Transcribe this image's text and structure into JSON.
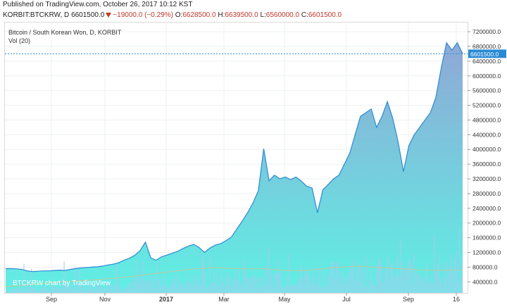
{
  "header": {
    "published": "Published on TradingView.com, October 26, 2017 10:12 KST",
    "symbol": "KORBIT:BTCKRW, D",
    "last": "6601500.0",
    "change": "−19000.0 (−0.29%)",
    "open_label": "O:",
    "open": "6628500.0",
    "high_label": "H:",
    "high": "6639500.0",
    "low_label": "L:",
    "low": "6560000.0",
    "close_label": "C:",
    "close": "6601500.0"
  },
  "legend": {
    "title": "Bitcoin / South Korean Won, D, KORBIT",
    "volume": "Vol (20)"
  },
  "watermark": "BTCKRW chart by TradingView",
  "colors": {
    "line": "#2a8ad4",
    "area_top": "#8fa8d6",
    "area_bottom": "#5ff0e4",
    "volume": "#a9c9f0",
    "volume_ma": "#c7c79a",
    "price_tag": "#2a8ad4",
    "grid": "#eef0f2",
    "negative": "#c0392b"
  },
  "chart_data": {
    "type": "area",
    "x_labels": [
      "Sep",
      "Nov",
      "2017",
      "Mar",
      "May",
      "Jul",
      "Sep",
      "16"
    ],
    "y_ticks": [
      "7200000.0",
      "6800000.0",
      "6400000.0",
      "6000000.0",
      "5600000.0",
      "5200000.0",
      "4800000.0",
      "4400000.0",
      "4000000.0",
      "3600000.0",
      "3200000.0",
      "2800000.0",
      "2400000.0",
      "2000000.0",
      "1600000.0",
      "1200000.0",
      "800000.0",
      "400000.0"
    ],
    "ylim": [
      100000,
      7450000
    ],
    "last_price_label": "6601500.0",
    "series": [
      {
        "values": [
          760000,
          760000,
          755000,
          740000,
          700000,
          680000,
          690000,
          700000,
          700000,
          710000,
          720000,
          710000,
          740000,
          760000,
          780000,
          790000,
          800000,
          810000,
          830000,
          860000,
          880000,
          920000,
          990000,
          1040000,
          1120000,
          1250000,
          1480000,
          1050000,
          990000,
          1080000,
          1130000,
          1180000,
          1230000,
          1310000,
          1370000,
          1420000,
          1330000,
          1200000,
          1320000,
          1400000,
          1440000,
          1520000,
          1620000,
          1840000,
          2050000,
          2280000,
          2540000,
          2880000,
          4020000,
          3150000,
          3300000,
          3200000,
          3250000,
          3180000,
          3250000,
          3140000,
          3000000,
          2950000,
          2280000,
          2900000,
          3050000,
          3200000,
          3300000,
          3600000,
          3900000,
          4400000,
          4900000,
          5000000,
          5100000,
          4600000,
          4900000,
          5300000,
          4850000,
          4200000,
          3400000,
          4100000,
          4400000,
          4600000,
          4800000,
          5000000,
          5400000,
          6200000,
          6900000,
          6700000,
          6900000,
          6601500
        ]
      }
    ],
    "volume_ma": [
      180000,
      200000,
      230000,
      260000,
      290000,
      320000,
      340000,
      360000,
      380000,
      410000,
      440000,
      480000,
      520000,
      560000,
      600000,
      640000,
      680000,
      700000,
      720000,
      700000,
      690000,
      680000,
      690000,
      660000,
      640000,
      630000,
      650000,
      680000,
      720000,
      740000,
      760000,
      740000,
      720000,
      700000,
      680000,
      660000,
      650000,
      640000,
      650000,
      660000
    ]
  }
}
